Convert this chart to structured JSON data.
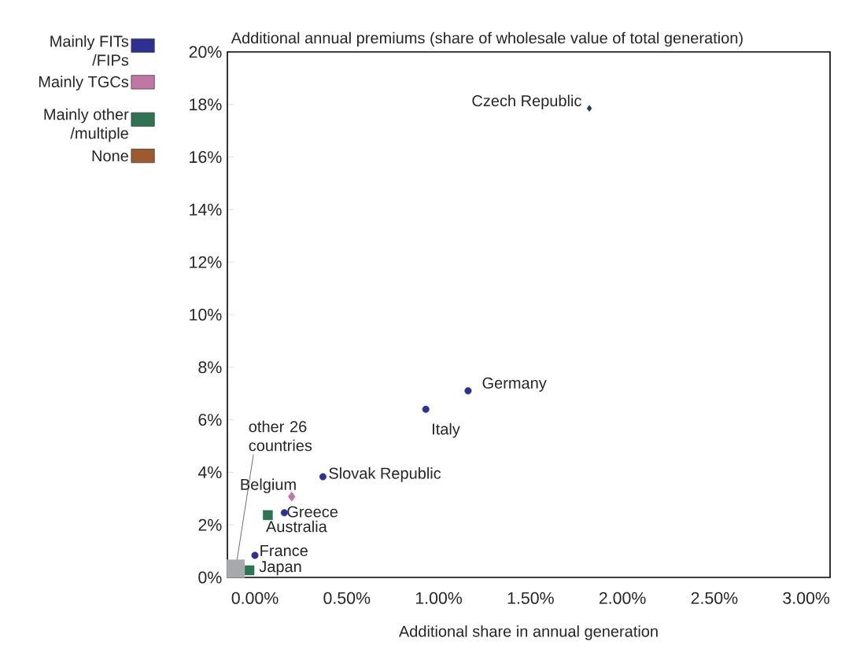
{
  "chart_data": {
    "type": "scatter",
    "xlabel": "Additional share in annual generation",
    "ylabel": "Additional annual premiums (share of wholesale value of total generation)",
    "xlim": [
      -0.15,
      3.13
    ],
    "ylim": [
      0,
      20
    ],
    "xticks": [
      {
        "value": 0,
        "label": "0.00%"
      },
      {
        "value": 0.5,
        "label": "0.50%"
      },
      {
        "value": 1,
        "label": "1.00%"
      },
      {
        "value": 1.5,
        "label": "1.50%"
      },
      {
        "value": 2,
        "label": "2.00%"
      },
      {
        "value": 2.5,
        "label": "2.50%"
      },
      {
        "value": 3,
        "label": "3.00%"
      }
    ],
    "yticks": [
      {
        "value": 0,
        "label": "0%"
      },
      {
        "value": 2,
        "label": "2%"
      },
      {
        "value": 4,
        "label": "4%"
      },
      {
        "value": 6,
        "label": "6%"
      },
      {
        "value": 8,
        "label": "8%"
      },
      {
        "value": 10,
        "label": "10%"
      },
      {
        "value": 12,
        "label": "12%"
      },
      {
        "value": 14,
        "label": "14%"
      },
      {
        "value": 16,
        "label": "16%"
      },
      {
        "value": 18,
        "label": "18%"
      },
      {
        "value": 20,
        "label": "20%"
      }
    ],
    "legend": "left",
    "grid": false,
    "series": [
      {
        "name": "Mainly FITs /FIPs",
        "color": "#2e3192",
        "marker": "circle",
        "x": [
          1.16,
          0.93,
          0.37,
          0.16,
          0.0
        ],
        "values": [
          7.1,
          6.4,
          3.83,
          2.46,
          0.84
        ]
      },
      {
        "name": "Mainly TGCs",
        "color": "#c177a6",
        "marker": "diamond",
        "x": [
          0.2
        ],
        "values": [
          3.08
        ]
      },
      {
        "name": "Mainly other /multiple",
        "color": "#2e7352",
        "marker": "square",
        "x": [
          0.07,
          -0.03
        ],
        "values": [
          2.37,
          0.27
        ]
      },
      {
        "name": "None",
        "color": "#9c5a2e"
      },
      {
        "color": "#1f3a5f",
        "marker": "diamond",
        "x": [
          1.82
        ],
        "values": [
          17.85
        ]
      },
      {
        "color": "#a7a9ac",
        "marker": "square",
        "x": [
          -0.105
        ],
        "values": [
          0.33
        ]
      }
    ],
    "annotations": [
      {
        "text": "Czech Republic",
        "x": 1.82,
        "y": 17.85
      },
      {
        "text": "Germany",
        "x": 1.16,
        "y": 7.1
      },
      {
        "text": "Italy",
        "x": 0.93,
        "y": 6.4
      },
      {
        "text": "Slovak Republic",
        "x": 0.37,
        "y": 3.83
      },
      {
        "text": "Belgium",
        "x": 0.2,
        "y": 3.08
      },
      {
        "text": "Greece",
        "x": 0.16,
        "y": 2.46
      },
      {
        "text": "Australia",
        "x": 0.07,
        "y": 2.37
      },
      {
        "text": "France",
        "x": 0.0,
        "y": 0.84
      },
      {
        "text": "Japan",
        "x": -0.03,
        "y": 0.27
      },
      {
        "text": "other 26 countries",
        "x": -0.105,
        "y": 0.33
      }
    ]
  }
}
